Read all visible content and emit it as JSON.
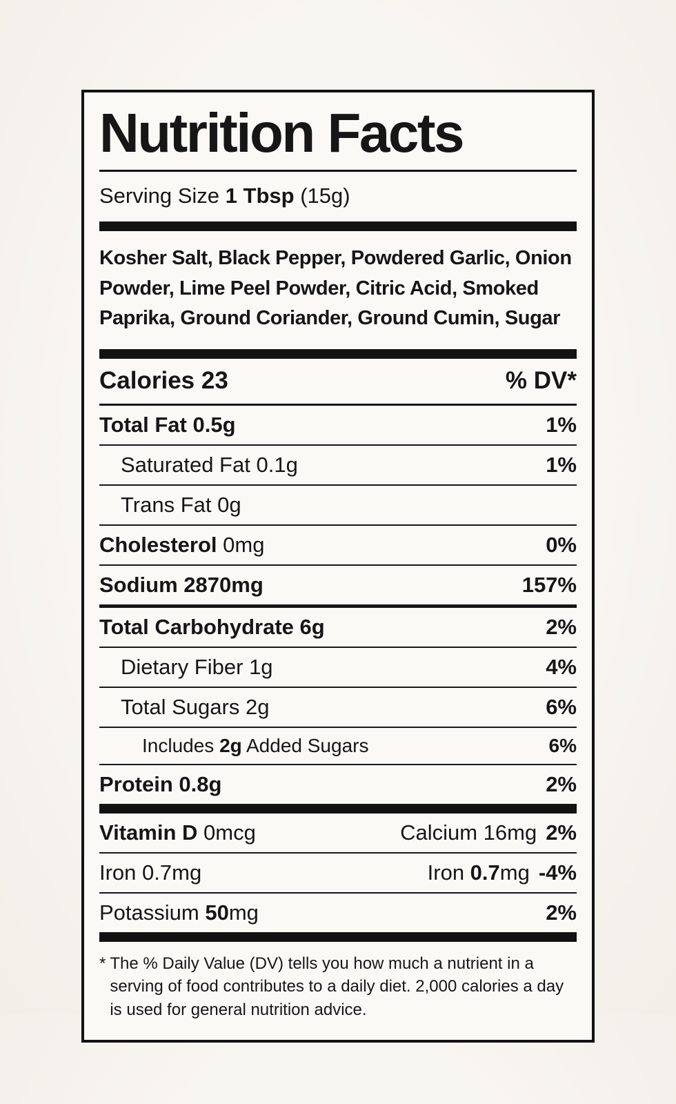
{
  "colors": {
    "text": "#161616",
    "rule": "#121212",
    "label_background": "#faf9f6",
    "page_background": "#f5f2ee"
  },
  "label": {
    "title": "Nutrition Facts",
    "serving": {
      "prefix": "Serving Size",
      "size": "1 Tbsp",
      "weight": "(15g)"
    },
    "ingredients": "Kosher Salt, Black Pepper, Powdered Garlic, Onion Powder, Lime Peel Powder, Citric Acid, Smoked Paprika, Ground Coriander, Ground Cumin, Sugar",
    "calories": {
      "label": "Calories",
      "value": "23",
      "dv_header": "% DV*"
    },
    "nutrients": [
      {
        "name": "Total Fat",
        "amount": "0.5g",
        "dv": "1%"
      },
      {
        "name": "Saturated Fat",
        "amount": "0.1g",
        "dv": "1%"
      },
      {
        "name": "Trans Fat",
        "amount": "0g",
        "dv": ""
      },
      {
        "name": "Cholesterol",
        "amount": "0mg",
        "dv": "0%"
      },
      {
        "name": "Sodium",
        "amount": "2870mg",
        "dv": "157%"
      },
      {
        "name": "Total Carbohydrate",
        "amount": "6g",
        "dv": "2%"
      },
      {
        "name": "Dietary Fiber",
        "amount": "1g",
        "dv": "4%"
      },
      {
        "name": "Total Sugars",
        "amount": "2g",
        "dv": "6%"
      },
      {
        "name": "Includes",
        "bold_amount": "2g",
        "suffix": "Added Sugars",
        "dv": "6%"
      },
      {
        "name": "Protein",
        "amount": "0.8g",
        "dv": "2%"
      }
    ],
    "micros": {
      "vitamin_d": {
        "name": "Vitamin D",
        "amount": "0mcg"
      },
      "calcium": {
        "text": "Calcium 16mg",
        "dv": "2%"
      },
      "iron_left": "Iron 0.7mg",
      "iron_right": {
        "pre": "Iron ",
        "bold": "0.7",
        "post": "mg",
        "dv": "-4%"
      },
      "potassium": {
        "pre": "Potassium ",
        "bold": "50",
        "post": "mg",
        "dv": "2%"
      }
    },
    "footnote": {
      "star": "*",
      "text": "The % Daily Value (DV) tells you how much a nutrient in a serving of food contributes to a daily diet. 2,000 calories a day is used for general nutrition advice."
    }
  }
}
